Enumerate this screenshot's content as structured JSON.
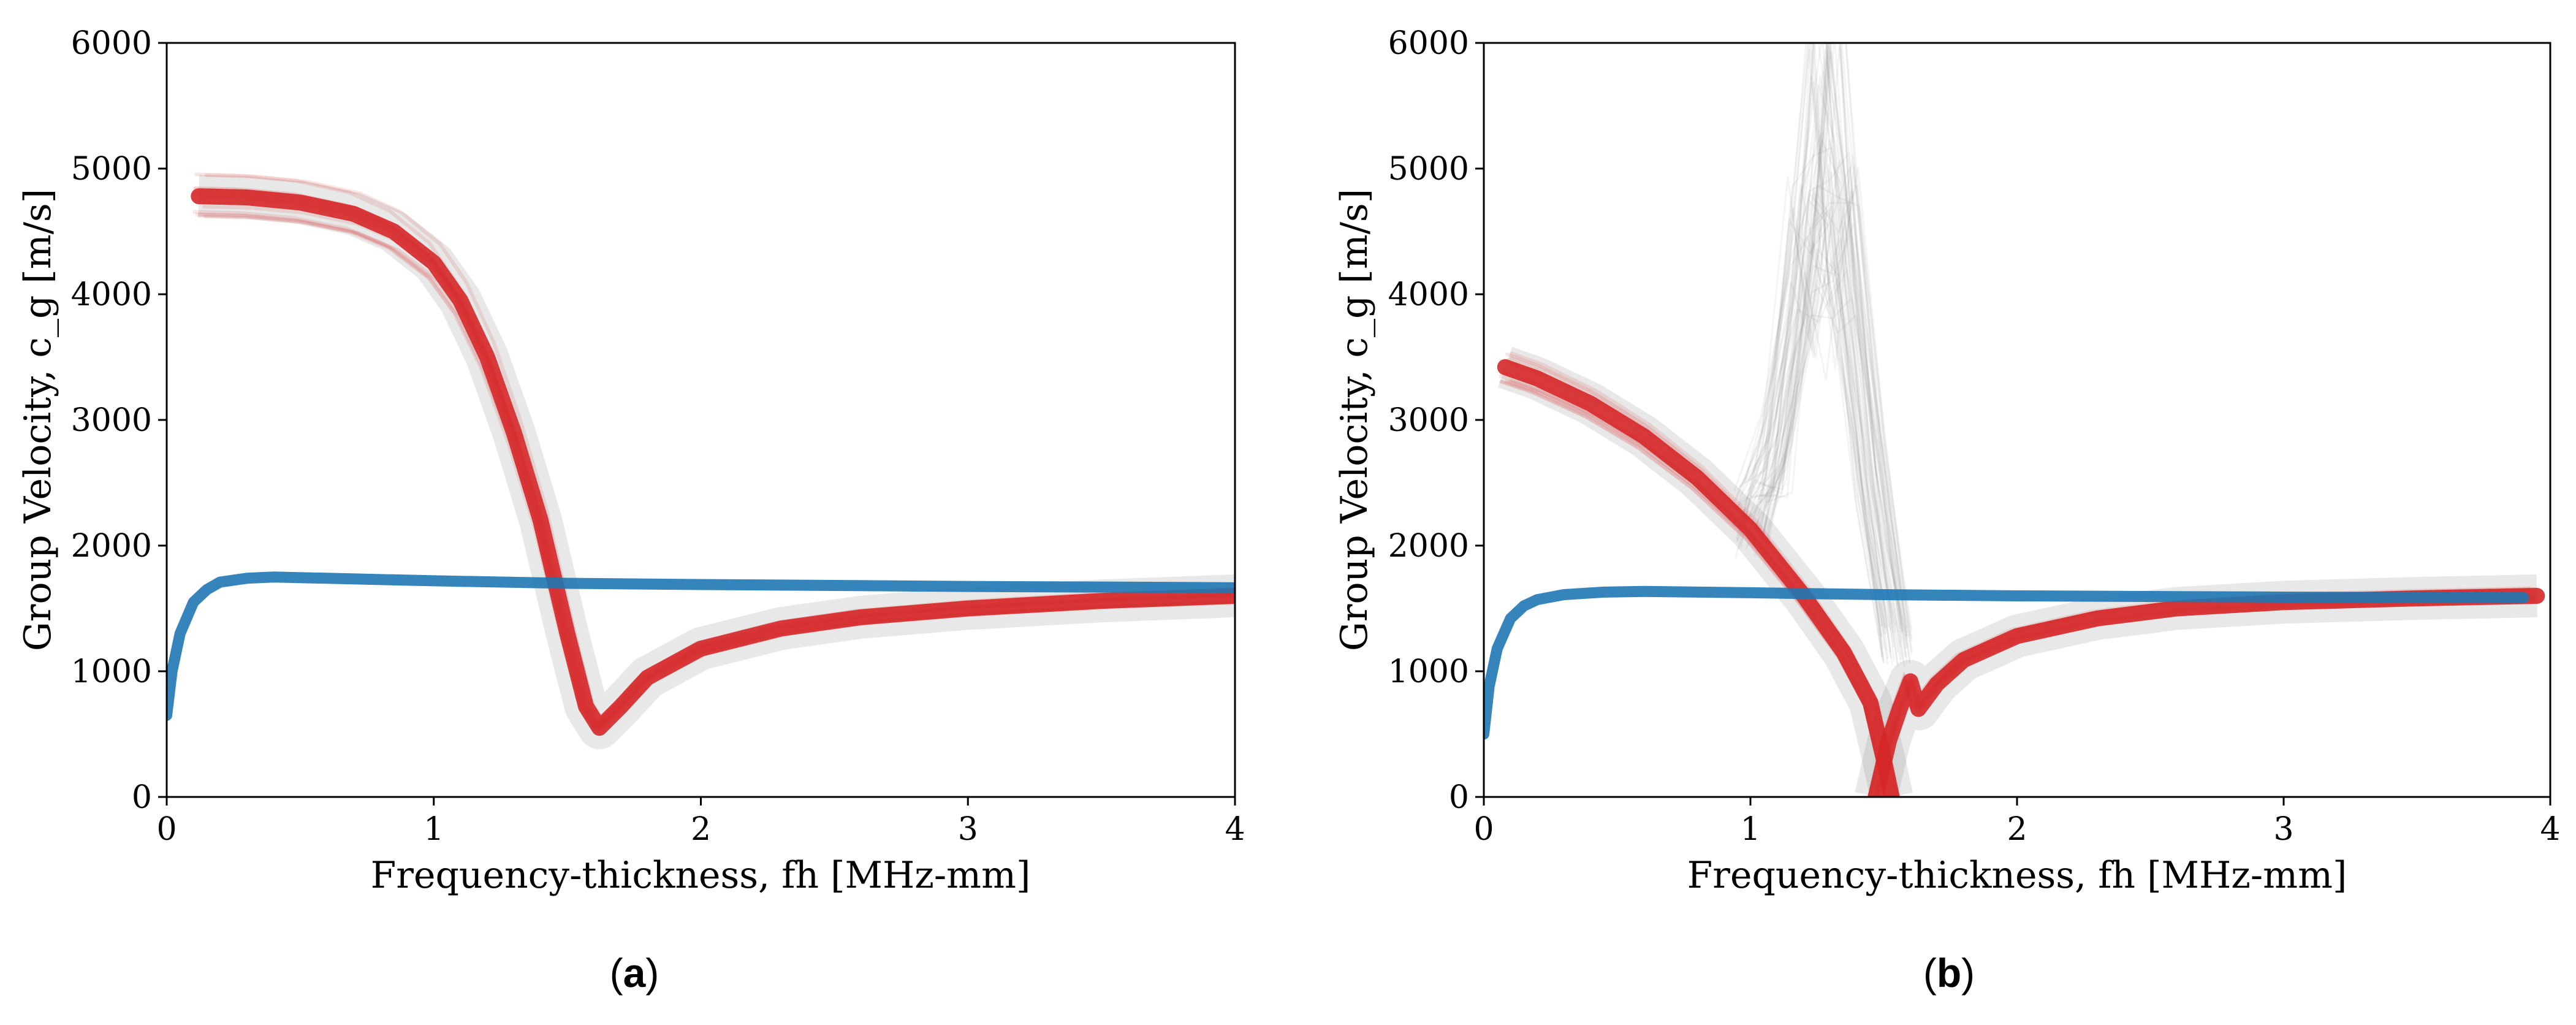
{
  "colors": {
    "red_mode": "#d62728",
    "blue_mode": "#1f77b4",
    "gray_samples": "#808080",
    "axes": "#000000"
  },
  "chart_data": [
    {
      "type": "line",
      "panel": "a",
      "caption_letter": "a",
      "xlabel": "Frequency-thickness, fh [MHz-mm]",
      "ylabel": "Group Velocity, c_g [m/s]",
      "xlim": [
        0,
        4
      ],
      "ylim": [
        0,
        6000
      ],
      "xticks": [
        0,
        1,
        2,
        3,
        4
      ],
      "xtick_labels": [
        "0",
        "1",
        "2",
        "3",
        "4"
      ],
      "yticks": [
        0,
        1000,
        2000,
        3000,
        4000,
        5000,
        6000
      ],
      "ytick_labels": [
        "0",
        "1000",
        "2000",
        "3000",
        "4000",
        "5000",
        "6000"
      ],
      "series": [
        {
          "name": "red-mode",
          "color": "red",
          "x": [
            0.12,
            0.3,
            0.5,
            0.7,
            0.85,
            1.0,
            1.1,
            1.2,
            1.3,
            1.4,
            1.5,
            1.57,
            1.62,
            1.7,
            1.8,
            2.0,
            2.3,
            2.6,
            3.0,
            3.5,
            4.0
          ],
          "y": [
            4780,
            4770,
            4730,
            4640,
            4500,
            4250,
            3950,
            3500,
            2900,
            2200,
            1300,
            720,
            550,
            720,
            950,
            1180,
            1340,
            1430,
            1500,
            1560,
            1600
          ]
        },
        {
          "name": "blue-mode",
          "color": "blue",
          "x": [
            0.0,
            0.02,
            0.05,
            0.1,
            0.15,
            0.2,
            0.3,
            0.4,
            0.6,
            1.0,
            1.5,
            2.0,
            3.0,
            4.0
          ],
          "y": [
            650,
            1000,
            1300,
            1550,
            1650,
            1710,
            1740,
            1750,
            1740,
            1720,
            1700,
            1690,
            1675,
            1665
          ]
        }
      ]
    },
    {
      "type": "line",
      "panel": "b",
      "caption_letter": "b",
      "xlabel": "Frequency-thickness, fh [MHz-mm]",
      "ylabel": "Group Velocity, c_g [m/s]",
      "xlim": [
        0,
        4
      ],
      "ylim": [
        0,
        6000
      ],
      "xticks": [
        0,
        1,
        2,
        3,
        4
      ],
      "xtick_labels": [
        "0",
        "1",
        "2",
        "3",
        "4"
      ],
      "yticks": [
        0,
        1000,
        2000,
        3000,
        4000,
        5000,
        6000
      ],
      "ytick_labels": [
        "0",
        "1000",
        "2000",
        "3000",
        "4000",
        "5000",
        "6000"
      ],
      "series": [
        {
          "name": "red-mode-upper",
          "color": "red",
          "x": [
            0.08,
            0.2,
            0.4,
            0.6,
            0.8,
            1.0,
            1.2,
            1.35,
            1.45,
            1.5,
            1.53
          ],
          "y": [
            3420,
            3330,
            3130,
            2870,
            2540,
            2130,
            1600,
            1150,
            750,
            300,
            0
          ]
        },
        {
          "name": "red-mode-lower",
          "color": "red",
          "x": [
            1.47,
            1.52,
            1.56,
            1.6,
            1.63,
            1.7,
            1.8,
            2.0,
            2.3,
            2.6,
            3.0,
            3.5,
            3.95
          ],
          "y": [
            0,
            450,
            700,
            920,
            700,
            900,
            1090,
            1280,
            1420,
            1500,
            1550,
            1580,
            1600
          ]
        },
        {
          "name": "blue-mode",
          "color": "blue",
          "x": [
            0.0,
            0.02,
            0.05,
            0.1,
            0.15,
            0.2,
            0.3,
            0.45,
            0.6,
            1.0,
            1.5,
            2.0,
            3.0,
            3.9
          ],
          "y": [
            500,
            880,
            1180,
            1420,
            1520,
            1570,
            1610,
            1630,
            1635,
            1625,
            1610,
            1600,
            1590,
            1585
          ]
        },
        {
          "name": "gray-spread-samples",
          "color": "gray",
          "x": [
            1.0,
            1.1,
            1.2,
            1.28,
            1.35,
            1.45,
            1.55
          ],
          "y": [
            2200,
            2800,
            4300,
            6000,
            4500,
            2600,
            1200
          ]
        }
      ]
    }
  ]
}
